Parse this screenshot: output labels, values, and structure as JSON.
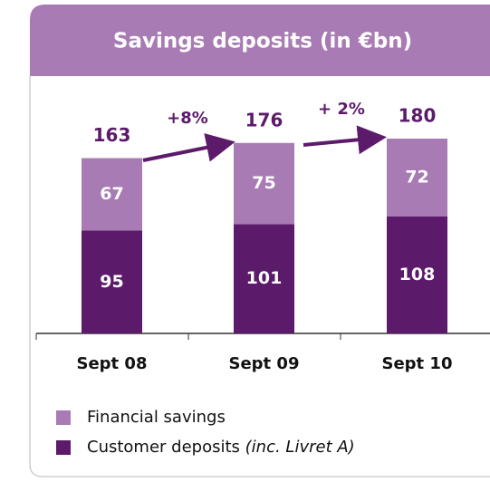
{
  "chart_data": {
    "type": "stacked-bar",
    "title": "Savings deposits (in €bn)",
    "categories": [
      "Sept 08",
      "Sept 09",
      "Sept 10"
    ],
    "series": [
      {
        "name": "Customer deposits",
        "legend_note": "(inc. Livret A)",
        "color": "#5c1a6b",
        "values": [
          95,
          101,
          108
        ]
      },
      {
        "name": "Financial savings",
        "color": "#a87bb4",
        "values": [
          67,
          75,
          72
        ]
      }
    ],
    "total_labels": [
      163,
      176,
      180
    ],
    "annotations": [
      "+8%",
      "+ 2%"
    ]
  }
}
